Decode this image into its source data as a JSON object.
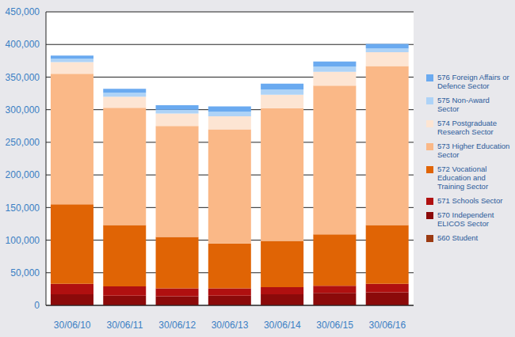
{
  "chart_data": {
    "type": "bar",
    "stacked": true,
    "grid": true,
    "legend": "right",
    "categories": [
      "30/06/10",
      "30/06/11",
      "30/06/12",
      "30/06/13",
      "30/06/14",
      "30/06/15",
      "30/06/16"
    ],
    "ylim": [
      0,
      450000
    ],
    "yticks": [
      0,
      {
        "value": 50000,
        "label": "50,000"
      },
      {
        "value": 100000,
        "label": "100,000"
      },
      {
        "value": 150000,
        "label": "150,000"
      },
      {
        "value": 200000,
        "label": "200,000"
      },
      {
        "value": 250000,
        "label": "250,000"
      },
      {
        "value": 300000,
        "label": "300,000"
      },
      {
        "value": 350000,
        "label": "350,000"
      },
      {
        "value": 400000,
        "label": "400,000"
      },
      {
        "value": 450000,
        "label": "450,000"
      }
    ],
    "series": [
      {
        "name": "560 Student",
        "color": "#9b3a12",
        "values": [
          0,
          0,
          0,
          0,
          0,
          0,
          0
        ]
      },
      {
        "name": "570 Independent ELICOS Sector",
        "color": "#8b0a0a",
        "values": [
          17000,
          15000,
          14000,
          15000,
          17000,
          19000,
          20000
        ]
      },
      {
        "name": "571 Schools Sector",
        "color": "#b01010",
        "values": [
          16000,
          14000,
          12000,
          11000,
          11000,
          11000,
          13000
        ]
      },
      {
        "name": "572 Vocational Education and Training Sector",
        "color": "#e06405",
        "values": [
          122000,
          94000,
          79000,
          69000,
          71000,
          79000,
          90000
        ]
      },
      {
        "name": "573 Higher Education Sector",
        "color": "#fab887",
        "values": [
          200000,
          180000,
          170000,
          175000,
          203000,
          228000,
          244000
        ]
      },
      {
        "name": "574 Postgraduate Research Sector",
        "color": "#fde5d3",
        "values": [
          18000,
          17000,
          19000,
          20000,
          21000,
          21000,
          21000
        ]
      },
      {
        "name": "575 Non-Award Sector",
        "color": "#aed3f7",
        "values": [
          5000,
          6000,
          6000,
          7000,
          8000,
          8000,
          6000
        ]
      },
      {
        "name": "576 Foreign Affairs or Defence Sector",
        "color": "#6aaaf0",
        "values": [
          5000,
          6000,
          7000,
          8000,
          9000,
          8000,
          7000
        ]
      }
    ]
  }
}
